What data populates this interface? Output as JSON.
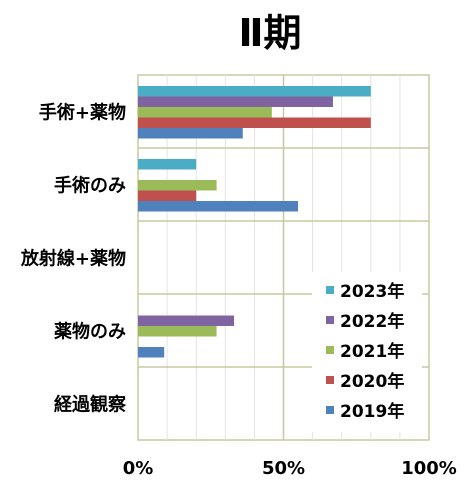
{
  "chart_data": {
    "type": "bar",
    "orientation": "horizontal",
    "title": "Ⅱ期",
    "xlabel": "",
    "ylabel": "",
    "xlim": [
      0,
      100
    ],
    "x_ticks": [
      "0%",
      "50%",
      "100%"
    ],
    "grid": true,
    "legend_position": "bottom-right",
    "categories": [
      "手術+薬物",
      "手術のみ",
      "放射線+薬物",
      "薬物のみ",
      "経過観察"
    ],
    "series": [
      {
        "name": "2023年",
        "color": "#4bacc6",
        "values": [
          80,
          20,
          0,
          0,
          0
        ]
      },
      {
        "name": "2022年",
        "color": "#8064a2",
        "values": [
          67,
          0,
          0,
          33,
          0
        ]
      },
      {
        "name": "2021年",
        "color": "#9bbb59",
        "values": [
          46,
          27,
          0,
          27,
          0
        ]
      },
      {
        "name": "2020年",
        "color": "#c0504d",
        "values": [
          80,
          20,
          0,
          0,
          0
        ]
      },
      {
        "name": "2019年",
        "color": "#4f81bd",
        "values": [
          36,
          55,
          0,
          9,
          0
        ]
      }
    ]
  }
}
